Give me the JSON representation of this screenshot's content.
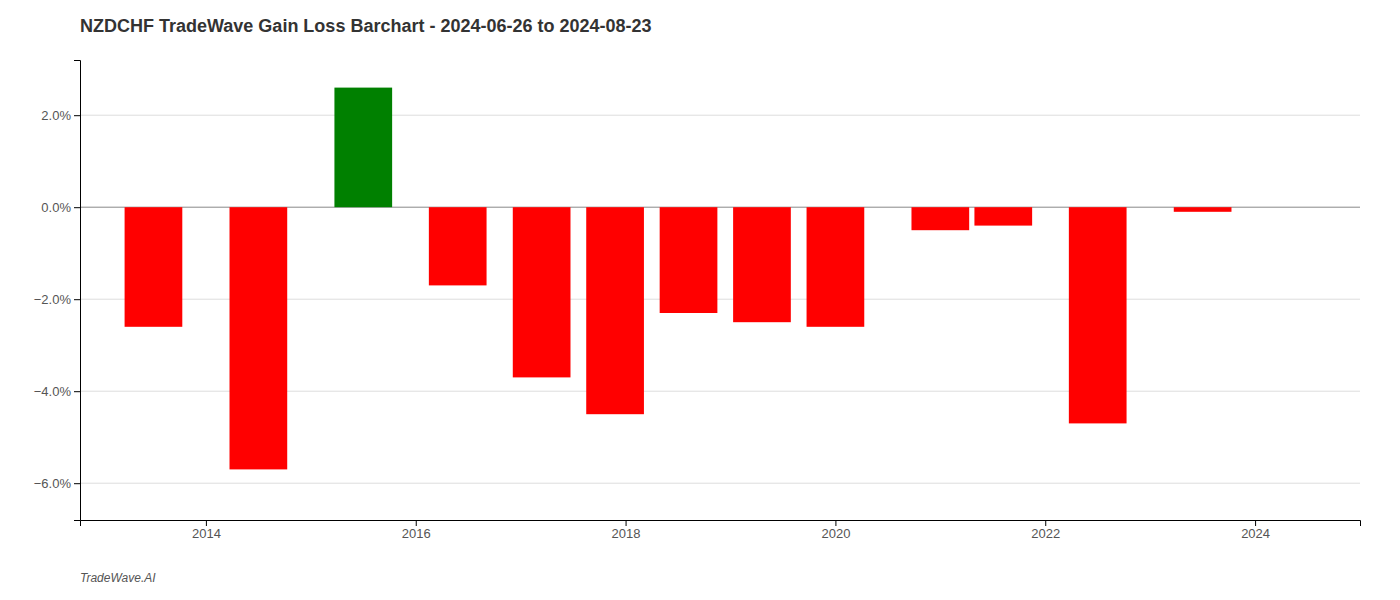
{
  "chart_data": {
    "type": "bar",
    "title": "NZDCHF TradeWave Gain Loss Barchart - 2024-06-26 to 2024-08-23",
    "annotations": [
      "TradeWave.AI"
    ],
    "x": [
      2013.5,
      2014.5,
      2015.5,
      2016.4,
      2017.2,
      2017.9,
      2018.6,
      2019.3,
      2020.0,
      2021.0,
      2021.6,
      2022.5,
      2023.5
    ],
    "values": [
      -2.6,
      -5.7,
      2.6,
      -1.7,
      -3.7,
      -4.5,
      -2.3,
      -2.5,
      -2.6,
      -0.5,
      -0.4,
      -4.7,
      -0.1
    ],
    "colors": [
      "#ff0000",
      "#ff0000",
      "#008000",
      "#ff0000",
      "#ff0000",
      "#ff0000",
      "#ff0000",
      "#ff0000",
      "#ff0000",
      "#ff0000",
      "#ff0000",
      "#ff0000",
      "#ff0000"
    ],
    "xlim": [
      2012.8,
      2025.0
    ],
    "xticks": [
      2014,
      2016,
      2018,
      2020,
      2022,
      2024
    ],
    "ylim": [
      -6.8,
      3.2
    ],
    "yticks": [
      {
        "value": -6.0,
        "label": "−6.0%"
      },
      {
        "value": -4.0,
        "label": "−4.0%"
      },
      {
        "value": -2.0,
        "label": "−2.0%"
      },
      {
        "value": 0.0,
        "label": "0.0%"
      },
      {
        "value": 2.0,
        "label": "2.0%"
      }
    ],
    "grid": true
  }
}
